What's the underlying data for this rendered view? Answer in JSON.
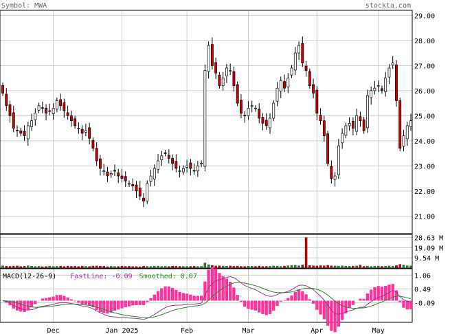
{
  "header": {
    "symbol_label": "Symbol: MWA",
    "site": "stockta.com"
  },
  "colors": {
    "up": "#ffffff",
    "down": "#cc0000",
    "vol_up": "#228b22",
    "vol_down": "#cc0000",
    "grid": "#cccccc",
    "macd_hist": "#ff3399",
    "fast_line": "#993399",
    "smoothed_line": "#228b22"
  },
  "chart_data": [
    {
      "type": "candlestick",
      "panel": "price",
      "title": "Symbol: MWA",
      "y_ticks": [
        "29.00",
        "28.00",
        "27.00",
        "26.00",
        "25.00",
        "24.00",
        "23.00",
        "22.00",
        "21.00"
      ],
      "ylim": [
        20.3,
        29.2
      ],
      "x_ticks": [
        "Dec",
        "Jan 2025",
        "Feb",
        "Mar",
        "Apr",
        "May"
      ],
      "grid": true,
      "closes": [
        25.9,
        25.4,
        25.0,
        24.5,
        24.4,
        24.3,
        24.2,
        24.6,
        24.8,
        25.1,
        25.4,
        25.3,
        25.1,
        25.2,
        25.3,
        25.6,
        25.4,
        25.2,
        25.0,
        24.8,
        24.6,
        24.5,
        24.3,
        24.4,
        24.1,
        23.7,
        23.2,
        22.9,
        22.8,
        22.6,
        22.7,
        22.8,
        22.6,
        22.5,
        22.4,
        22.3,
        22.2,
        22.0,
        21.8,
        21.6,
        22.3,
        22.6,
        22.9,
        23.2,
        23.4,
        23.5,
        23.3,
        23.1,
        22.9,
        22.8,
        22.9,
        23.0,
        22.9,
        22.8,
        23.0,
        23.1,
        26.8,
        27.8,
        27.0,
        26.7,
        26.2,
        26.5,
        26.9,
        26.8,
        26.2,
        25.5,
        25.1,
        25.0,
        25.3,
        25.4,
        25.3,
        24.9,
        24.7,
        24.6,
        24.9,
        25.5,
        26.1,
        26.4,
        26.1,
        26.5,
        26.9,
        27.5,
        27.8,
        27.1,
        26.8,
        26.2,
        25.9,
        25.1,
        24.8,
        24.2,
        23.1,
        22.5,
        22.6,
        23.8,
        24.3,
        24.6,
        24.7,
        24.5,
        25.0,
        24.8,
        24.4,
        25.8,
        26.0,
        26.1,
        26.2,
        26.0,
        26.5,
        26.9,
        27.1,
        25.6,
        23.7,
        24.2,
        24.6,
        24.8
      ],
      "volume_ticks": [
        "28.63 M",
        "19.09 M",
        "9.54 M"
      ],
      "volume_max_millions": 31.0,
      "volume_millions": [
        2.2,
        1.8,
        1.6,
        1.9,
        2.0,
        1.5,
        1.7,
        2.1,
        1.8,
        1.4,
        1.6,
        1.3,
        1.5,
        1.7,
        1.4,
        1.6,
        1.8,
        1.5,
        1.9,
        1.6,
        1.7,
        1.5,
        1.8,
        1.6,
        1.4,
        1.9,
        2.0,
        1.8,
        1.7,
        1.3,
        1.6,
        1.4,
        1.5,
        1.8,
        1.6,
        1.7,
        1.4,
        1.5,
        1.3,
        1.8,
        1.6,
        1.5,
        1.7,
        1.9,
        1.4,
        1.6,
        1.5,
        1.8,
        1.7,
        1.6,
        1.4,
        1.5,
        1.6,
        1.7,
        1.5,
        1.6,
        4.8,
        3.2,
        2.4,
        2.0,
        2.2,
        1.9,
        1.8,
        2.0,
        1.7,
        1.9,
        1.6,
        1.5,
        1.8,
        1.7,
        1.6,
        1.9,
        1.5,
        1.6,
        1.7,
        2.0,
        1.8,
        1.6,
        1.9,
        2.1,
        2.4,
        2.6,
        2.2,
        2.9,
        28.6,
        2.5,
        2.2,
        2.0,
        2.3,
        2.1,
        2.6,
        2.2,
        2.0,
        1.9,
        2.1,
        1.8,
        1.7,
        1.9,
        2.0,
        2.8,
        1.6,
        1.8,
        1.5,
        1.7,
        1.9,
        1.6,
        1.8,
        2.0,
        1.9,
        2.4,
        3.5,
        2.8,
        2.2,
        2.0
      ]
    },
    {
      "type": "macd",
      "panel": "macd",
      "label": "MACD(12-26-9)",
      "fast_label": "FastLine:",
      "fast_value": "-0.09",
      "smoothed_label": "Smoothed:",
      "smoothed_value": "0.07",
      "y_ticks": [
        "1.06",
        "0.49",
        "-0.09"
      ],
      "ylim": [
        -0.9,
        1.3
      ]
    }
  ]
}
